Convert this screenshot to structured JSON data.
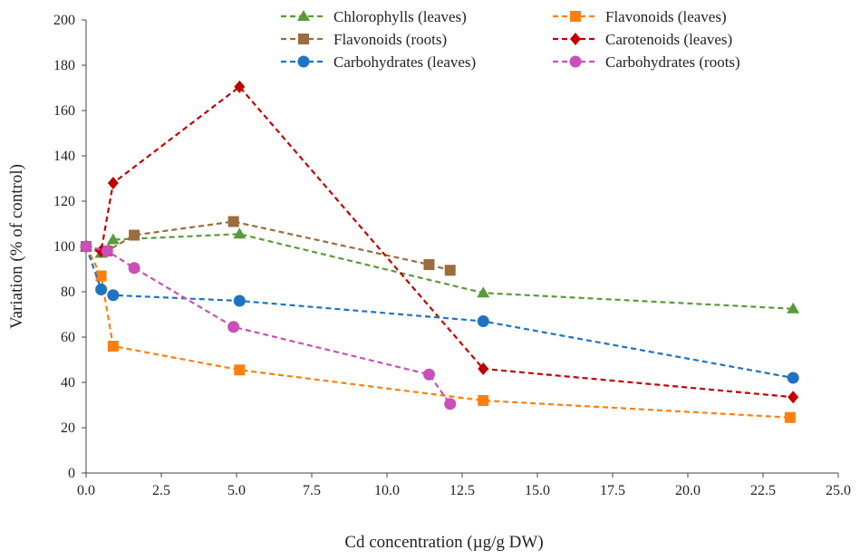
{
  "chart_data": {
    "type": "line",
    "title": "",
    "xlabel": "Cd concentration (µg/g DW)",
    "ylabel": "Variation (% of control)",
    "xlim": [
      0,
      25
    ],
    "ylim": [
      0,
      200
    ],
    "xticks": [
      "0.0",
      "2.5",
      "5.0",
      "7.5",
      "10.0",
      "12.5",
      "15.0",
      "17.5",
      "20.0",
      "22.5",
      "25.0"
    ],
    "yticks": [
      "0",
      "20",
      "40",
      "60",
      "80",
      "100",
      "120",
      "140",
      "160",
      "180",
      "200"
    ],
    "grid": false,
    "legend_position": "top",
    "series": [
      {
        "name": "Chlorophylls (leaves)",
        "color": "#5b9a3a",
        "marker": "triangle",
        "x": [
          0,
          0.5,
          0.9,
          5.1,
          13.2,
          23.5
        ],
        "y": [
          100,
          97,
          103,
          105.5,
          79.5,
          72.5
        ]
      },
      {
        "name": "Flavonoids (leaves)",
        "color": "#ff7f0e",
        "marker": "square",
        "x": [
          0,
          0.5,
          0.9,
          5.1,
          13.2,
          23.4
        ],
        "y": [
          100,
          87,
          56,
          45.5,
          32,
          24.5
        ]
      },
      {
        "name": "Flavonoids (roots)",
        "color": "#9c6b3e",
        "marker": "square",
        "x": [
          0,
          0.7,
          1.6,
          4.9,
          11.4,
          12.1
        ],
        "y": [
          100,
          98,
          105,
          111,
          92,
          89.5
        ]
      },
      {
        "name": "Carotenoids (leaves)",
        "color": "#c00000",
        "marker": "diamond",
        "x": [
          0,
          0.5,
          0.9,
          5.1,
          13.2,
          23.5
        ],
        "y": [
          100,
          98,
          128,
          170.5,
          46,
          33.5
        ]
      },
      {
        "name": "Carbohydrates (leaves)",
        "color": "#1f73c2",
        "marker": "circle",
        "x": [
          0,
          0.5,
          0.9,
          5.1,
          13.2,
          23.5
        ],
        "y": [
          100,
          81,
          78.5,
          76,
          67,
          42
        ]
      },
      {
        "name": "Carbohydrates (roots)",
        "color": "#c94fb9",
        "marker": "circle",
        "x": [
          0,
          0.7,
          1.6,
          4.9,
          11.4,
          12.1
        ],
        "y": [
          100,
          98,
          90.5,
          64.5,
          43.5,
          30.5
        ]
      }
    ]
  }
}
